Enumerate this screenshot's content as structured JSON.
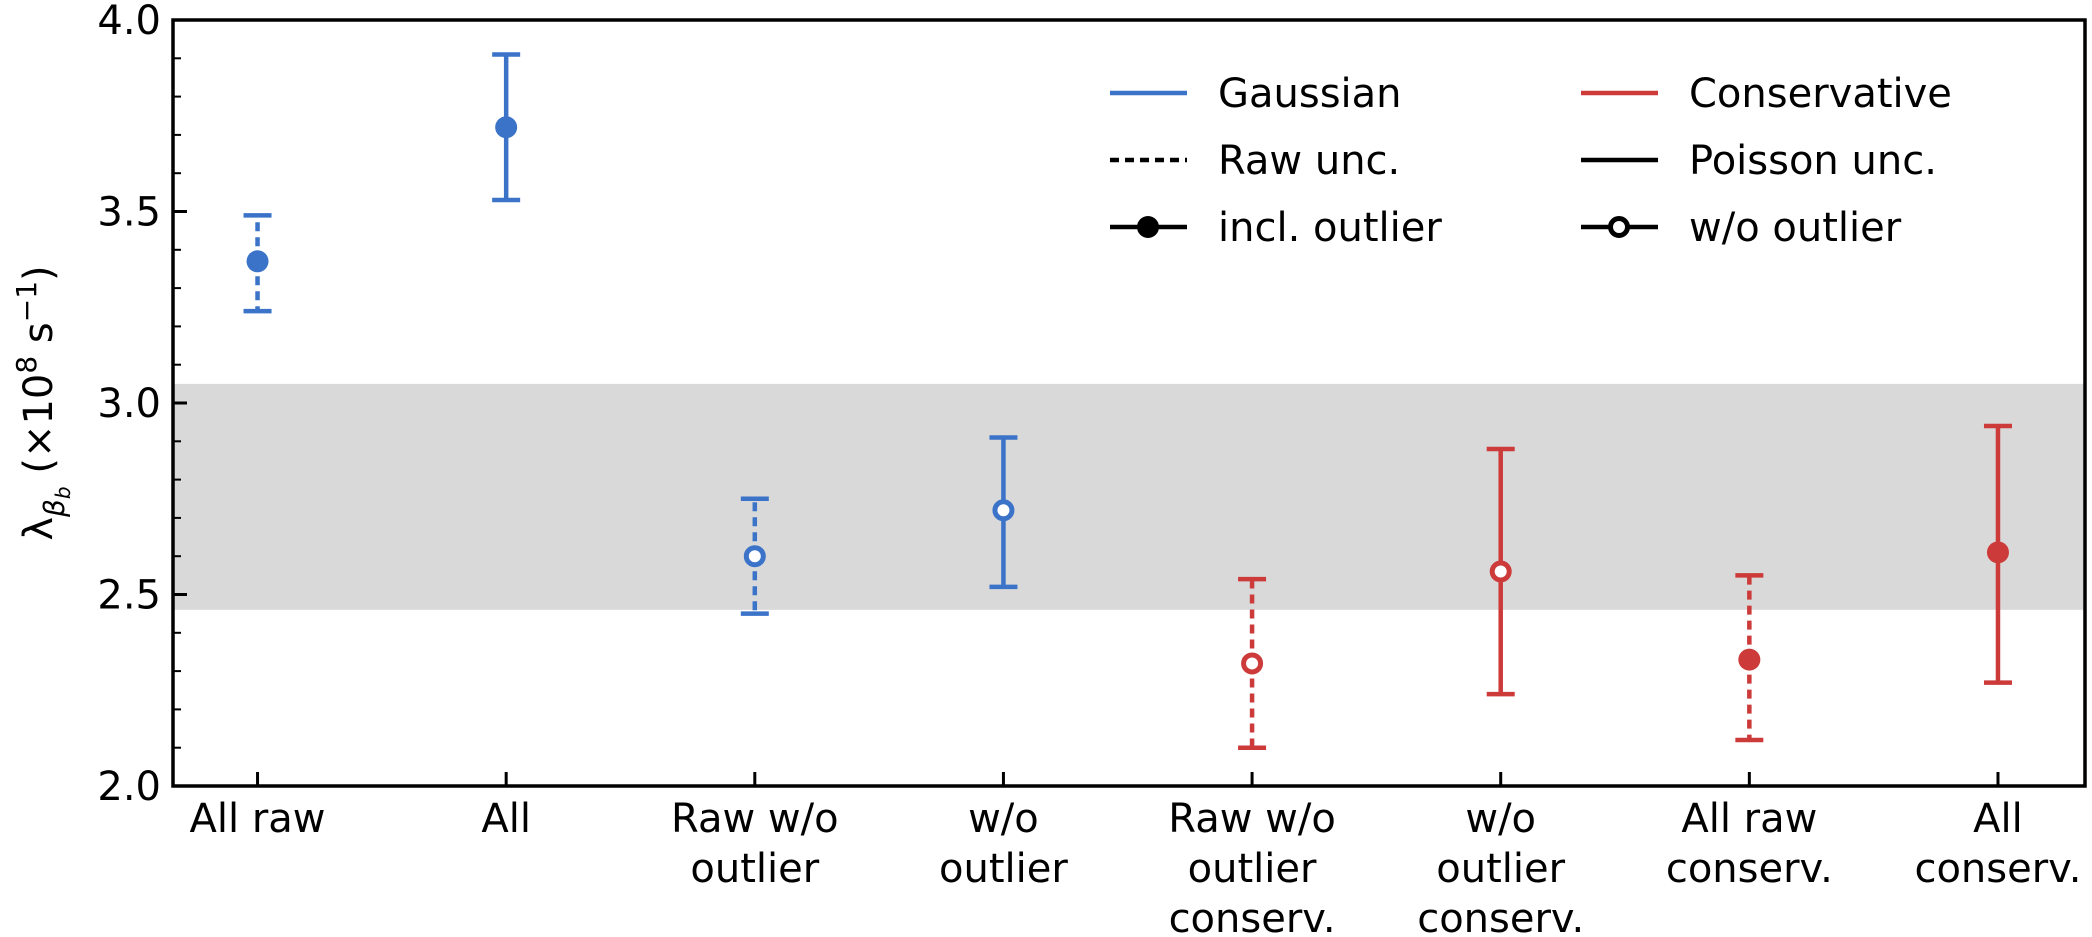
{
  "chart_data": {
    "type": "errorbar",
    "y_label": [
      "λ",
      "β",
      "b",
      " (×10",
      "8",
      " s",
      "−1",
      ")"
    ],
    "categories": [
      [
        "All raw"
      ],
      [
        "All"
      ],
      [
        "Raw w/o",
        "outlier"
      ],
      [
        "w/o",
        "outlier"
      ],
      [
        "Raw w/o",
        "outlier",
        "conserv."
      ],
      [
        "w/o",
        "outlier",
        "conserv."
      ],
      [
        "All raw",
        "conserv."
      ],
      [
        "All",
        "conserv."
      ]
    ],
    "values": [
      3.37,
      3.72,
      2.6,
      2.72,
      2.32,
      2.56,
      2.33,
      2.61
    ],
    "yerr_lower": [
      0.13,
      0.19,
      0.15,
      0.2,
      0.22,
      0.32,
      0.21,
      0.34
    ],
    "yerr_upper": [
      0.12,
      0.19,
      0.15,
      0.19,
      0.22,
      0.32,
      0.22,
      0.33
    ],
    "colors": [
      "#3a73c8",
      "#3a73c8",
      "#3a73c8",
      "#3a73c8",
      "#cc3a3a",
      "#cc3a3a",
      "#cc3a3a",
      "#cc3a3a"
    ],
    "linestyles": [
      "dashed",
      "solid",
      "dashed",
      "solid",
      "dashed",
      "solid",
      "dashed",
      "solid"
    ],
    "markers": [
      "filled",
      "filled",
      "open",
      "open",
      "open",
      "open",
      "filled",
      "filled"
    ],
    "ylim": [
      2.0,
      4.0
    ],
    "yticks": [
      {
        "value": 2.0,
        "label": "2.0"
      },
      {
        "value": 2.5,
        "label": "2.5"
      },
      {
        "value": 3.0,
        "label": "3.0"
      },
      {
        "value": 3.5,
        "label": "3.5"
      },
      {
        "value": 4.0,
        "label": "4.0"
      }
    ],
    "band": [
      2.46,
      3.05
    ],
    "band_color": "#d9d9d9",
    "legend": [
      {
        "label": "Gaussian",
        "color": "#3a73c8",
        "linestyle": "solid"
      },
      {
        "label": "Raw unc.",
        "color": "#000000",
        "linestyle": "dashed"
      },
      {
        "label": "incl. outlier",
        "color": "#000000",
        "linestyle": "solid",
        "marker": "filled"
      },
      {
        "label": "Conservative",
        "color": "#cc3a3a",
        "linestyle": "solid"
      },
      {
        "label": "Poisson unc.",
        "color": "#000000",
        "linestyle": "solid"
      },
      {
        "label": "w/o outlier",
        "color": "#000000",
        "linestyle": "solid",
        "marker": "open"
      }
    ]
  }
}
